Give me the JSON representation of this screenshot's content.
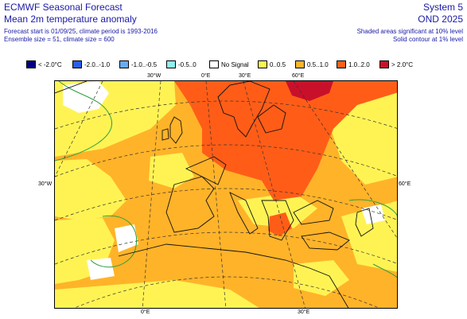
{
  "header": {
    "org_title": "ECMWF Seasonal Forecast",
    "product_title": "Mean 2m temperature anomaly",
    "info_line1": "Forecast start is 01/09/25, climate period is 1993-2016",
    "info_line2": "Ensemble size = 51, climate size = 600",
    "system": "System 5",
    "season": "OND 2025",
    "note1": "Shaded areas significant at 10% level",
    "note2": "Solid contour at 1% level"
  },
  "legend": [
    {
      "label": "< -2.0°C",
      "color": "#00007f"
    },
    {
      "label": "-2.0..-1.0",
      "color": "#2a5ee6"
    },
    {
      "label": "-1.0..-0.5",
      "color": "#6aaaf2"
    },
    {
      "label": "-0.5..0",
      "color": "#8df2ee"
    },
    {
      "label": "No Signal",
      "color": "#ffffff"
    },
    {
      "label": "0..0.5",
      "color": "#fff354"
    },
    {
      "label": "0.5..1.0",
      "color": "#ffb329"
    },
    {
      "label": "1.0..2.0",
      "color": "#ff5d17"
    },
    {
      "label": "> 2.0°C",
      "color": "#c9102a"
    }
  ],
  "grid_labels": {
    "lon_30w_top": "30°W",
    "lon_0_top": "0°E",
    "lon_30e_top": "30°E",
    "lon_60e_top": "60°E",
    "lon_30w_left": "30°W",
    "lon_60e_right": "60°E",
    "lon_0_bottom": "0°E",
    "lon_30e_bottom": "30°E"
  }
}
